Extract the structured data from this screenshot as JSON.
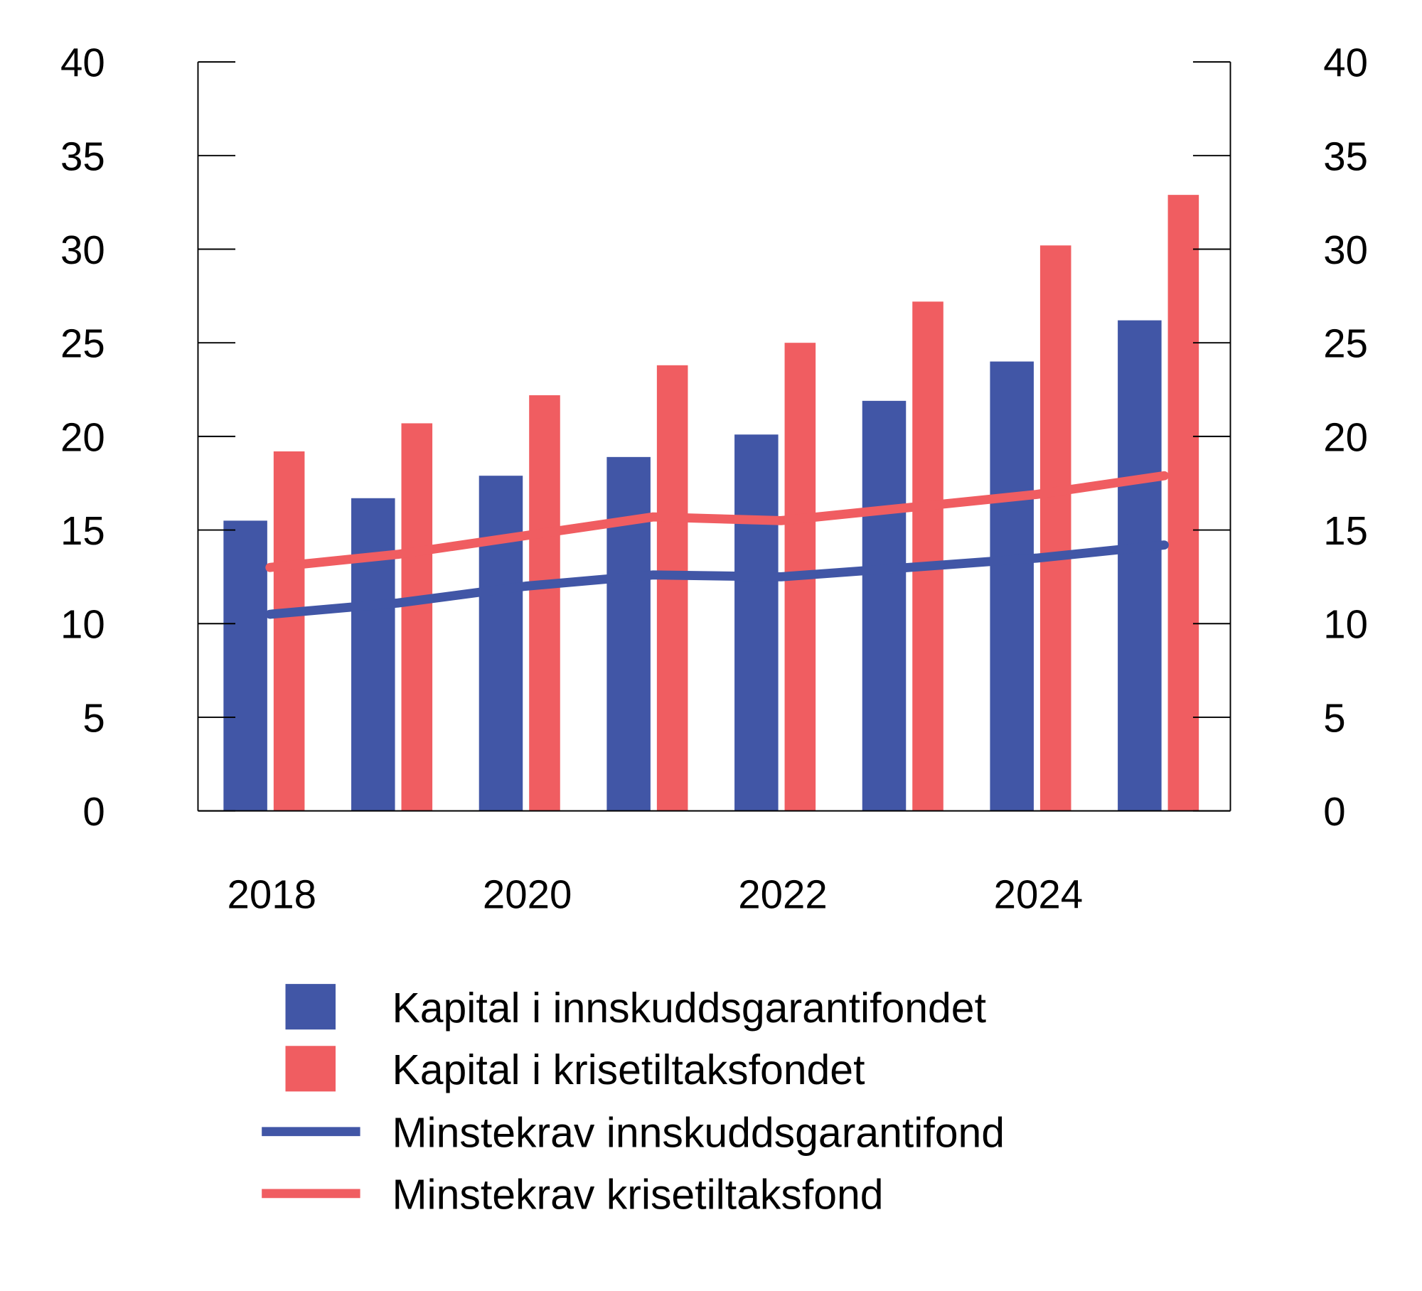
{
  "chart_data": {
    "type": "bar",
    "categories": [
      "2018",
      "2019",
      "2020",
      "2021",
      "2022",
      "2023",
      "2024",
      "2025"
    ],
    "x_tick_labels": [
      "2018",
      "2020",
      "2022",
      "2024"
    ],
    "ylim": [
      0,
      40
    ],
    "y_ticks": [
      0,
      5,
      10,
      15,
      20,
      25,
      30,
      35,
      40
    ],
    "y_axes": [
      "left",
      "right"
    ],
    "grid": false,
    "legend_position": "bottom",
    "series": [
      {
        "name": "Kapital i innskuddsgarantifondet",
        "type": "bar",
        "color": "#4156a6",
        "values": [
          15.5,
          16.7,
          17.9,
          18.9,
          20.1,
          21.9,
          24.0,
          26.2
        ]
      },
      {
        "name": "Kapital i krisetiltaksfondet",
        "type": "bar",
        "color": "#f05d61",
        "values": [
          19.2,
          20.7,
          22.2,
          23.8,
          25.0,
          27.2,
          30.2,
          32.9
        ]
      },
      {
        "name": "Minstekrav innskuddsgarantifond",
        "type": "line",
        "color": "#4156a6",
        "values": [
          10.5,
          11.1,
          12.0,
          12.6,
          12.5,
          13.0,
          13.5,
          14.2
        ]
      },
      {
        "name": "Minstekrav krisetiltaksfond",
        "type": "line",
        "color": "#f05d61",
        "values": [
          13.0,
          13.7,
          14.7,
          15.7,
          15.5,
          16.2,
          16.9,
          17.9
        ]
      }
    ]
  }
}
